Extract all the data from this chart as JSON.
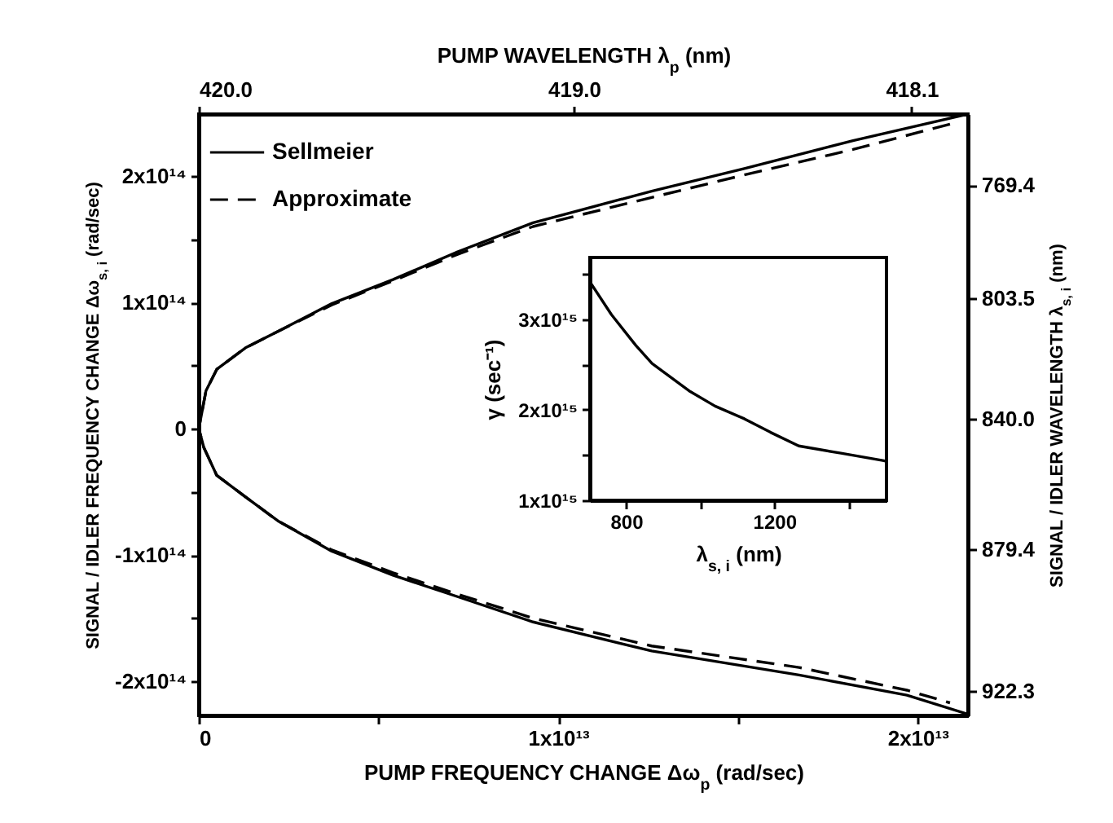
{
  "chart_data": [
    {
      "type": "line",
      "xlabel": "PUMP FREQUENCY CHANGE  Δω$_{p}$ (rad/sec)",
      "ylabel": "SIGNAL / IDLER FREQUENCY CHANGE  Δω$_{s, i}$ (rad/sec)",
      "x2label": "PUMP WAVELENGTH λ$_{p}$ (nm)",
      "y2label": "SIGNAL / IDLER WAVELENGTH λ$_{s, i}$ (nm)",
      "xlim": [
        0,
        21400000000000.0
      ],
      "xticks": [
        0,
        {
          "value": 5000000000000.0,
          "label": null
        },
        {
          "value": 10000000000000.0,
          "label": "1x10¹³"
        },
        {
          "value": 15000000000000.0,
          "label": null
        },
        {
          "value": 20000000000000.0,
          "label": "2x10¹³"
        }
      ],
      "ylim": [
        -227000000000000.0,
        249000000000000.0
      ],
      "yticks": [
        {
          "value": -200000000000000.0,
          "label": "-2x10¹⁴"
        },
        {
          "value": -150000000000000.0,
          "label": null
        },
        {
          "value": -100000000000000.0,
          "label": "-1x10¹⁴"
        },
        {
          "value": -50000000000000.0,
          "label": null
        },
        0,
        {
          "value": 50000000000000.0,
          "label": null
        },
        {
          "value": 100000000000000.0,
          "label": "1x10¹⁴"
        },
        {
          "value": 150000000000000.0,
          "label": null
        },
        {
          "value": 200000000000000.0,
          "label": "2x10¹⁴"
        }
      ],
      "x2lim": [
        420.0,
        417.95
      ],
      "x2ticks": [
        {
          "value": 420,
          "label": "420.0"
        },
        {
          "value": 419,
          "label": "419.0"
        },
        418.1
      ],
      "y2lim": [
        929.6,
        747.9
      ],
      "y2ticks": [
        922.3,
        879.4,
        {
          "value": 840,
          "label": "840.0"
        },
        803.5,
        769.4
      ],
      "legend": "top left",
      "grid": false,
      "series": [
        {
          "name": "Sellmeier",
          "color": "#000000",
          "line_style": "solid",
          "x": [
            21400000000000.0,
            18200000000000.0,
            15200000000000.0,
            12600000000000.0,
            9300000000000.0,
            7200000000000.0,
            5400000000000.0,
            3700000000000.0,
            2200000000000.0,
            1300000000000.0,
            500000000000.0,
            200000000000.0,
            0,
            140000000000.0,
            500000000000.0,
            1300000000000.0,
            2200000000000.0,
            3700000000000.0,
            5400000000000.0,
            7200000000000.0,
            9300000000000.0,
            12600000000000.0,
            16700000000000.0,
            19700000000000.0,
            21400000000000.0
          ],
          "values": [
            249000000000000.0,
            228000000000000.0,
            206000000000000.0,
            188000000000000.0,
            163000000000000.0,
            140000000000000.0,
            118000000000000.0,
            99000000000000.0,
            77000000000000.0,
            64000000000000.0,
            47000000000000.0,
            30000000000000.0,
            0,
            -15000000000000.0,
            -37000000000000.0,
            -54000000000000.0,
            -73000000000000.0,
            -97000000000000.0,
            -116000000000000.0,
            -133000000000000.0,
            -153000000000000.0,
            -176000000000000.0,
            -195000000000000.0,
            -211000000000000.0,
            -226000000000000.0
          ]
        },
        {
          "name": "Approximate",
          "color": "#000000",
          "line_style": "dashed",
          "x": [
            20900000000000.0,
            18200000000000.0,
            15200000000000.0,
            12600000000000.0,
            9300000000000.0,
            7200000000000.0,
            5400000000000.0,
            3700000000000.0,
            2200000000000.0,
            1300000000000.0,
            500000000000.0,
            200000000000.0,
            0,
            140000000000.0,
            500000000000.0,
            1300000000000.0,
            2200000000000.0,
            3700000000000.0,
            5400000000000.0,
            7200000000000.0,
            9300000000000.0,
            12600000000000.0,
            16700000000000.0,
            19700000000000.0,
            20900000000000.0
          ],
          "values": [
            241000000000000.0,
            221000000000000.0,
            201000000000000.0,
            183000000000000.0,
            160000000000000.0,
            138000000000000.0,
            117000000000000.0,
            98000000000000.0,
            77000000000000.0,
            64000000000000.0,
            47000000000000.0,
            30000000000000.0,
            0,
            -15000000000000.0,
            -37000000000000.0,
            -54000000000000.0,
            -73000000000000.0,
            -96000000000000.0,
            -114000000000000.0,
            -131000000000000.0,
            -150000000000000.0,
            -172000000000000.0,
            -189000000000000.0,
            -207000000000000.0,
            -217000000000000.0
          ]
        }
      ]
    },
    {
      "type": "line",
      "xlabel": "λ$_{s, i}$ (nm)",
      "ylabel": "γ (sec⁻¹)",
      "xlim": [
        702,
        1503
      ],
      "xticks": [
        800,
        {
          "value": 1000,
          "label": null
        },
        1200,
        {
          "value": 1400,
          "label": null
        }
      ],
      "ylim": [
        1000000000000000.0,
        3680000000000000.0
      ],
      "yticks": [
        {
          "value": 1000000000000000.0,
          "label": "1x10¹⁵"
        },
        {
          "value": 1500000000000000.0,
          "label": null
        },
        {
          "value": 2000000000000000.0,
          "label": "2x10¹⁵"
        },
        {
          "value": 2500000000000000.0,
          "label": null
        },
        {
          "value": 3000000000000000.0,
          "label": "3x10¹⁵"
        },
        {
          "value": 3500000000000000.0,
          "label": null
        }
      ],
      "grid": false,
      "series": [
        {
          "color": "#000000",
          "line_style": "solid",
          "x": [
            702,
            760,
            826,
            870,
            920,
            973,
            1040,
            1119,
            1190,
            1266,
            1380,
            1493,
            1503
          ],
          "values": [
            3410000000000000.0,
            3050000000000000.0,
            2710000000000000.0,
            2510000000000000.0,
            2360000000000000.0,
            2200000000000000.0,
            2040000000000000.0,
            1900000000000000.0,
            1750000000000000.0,
            1600000000000000.0,
            1520000000000000.0,
            1440000000000000.0,
            1430000000000000.0
          ]
        }
      ]
    }
  ]
}
